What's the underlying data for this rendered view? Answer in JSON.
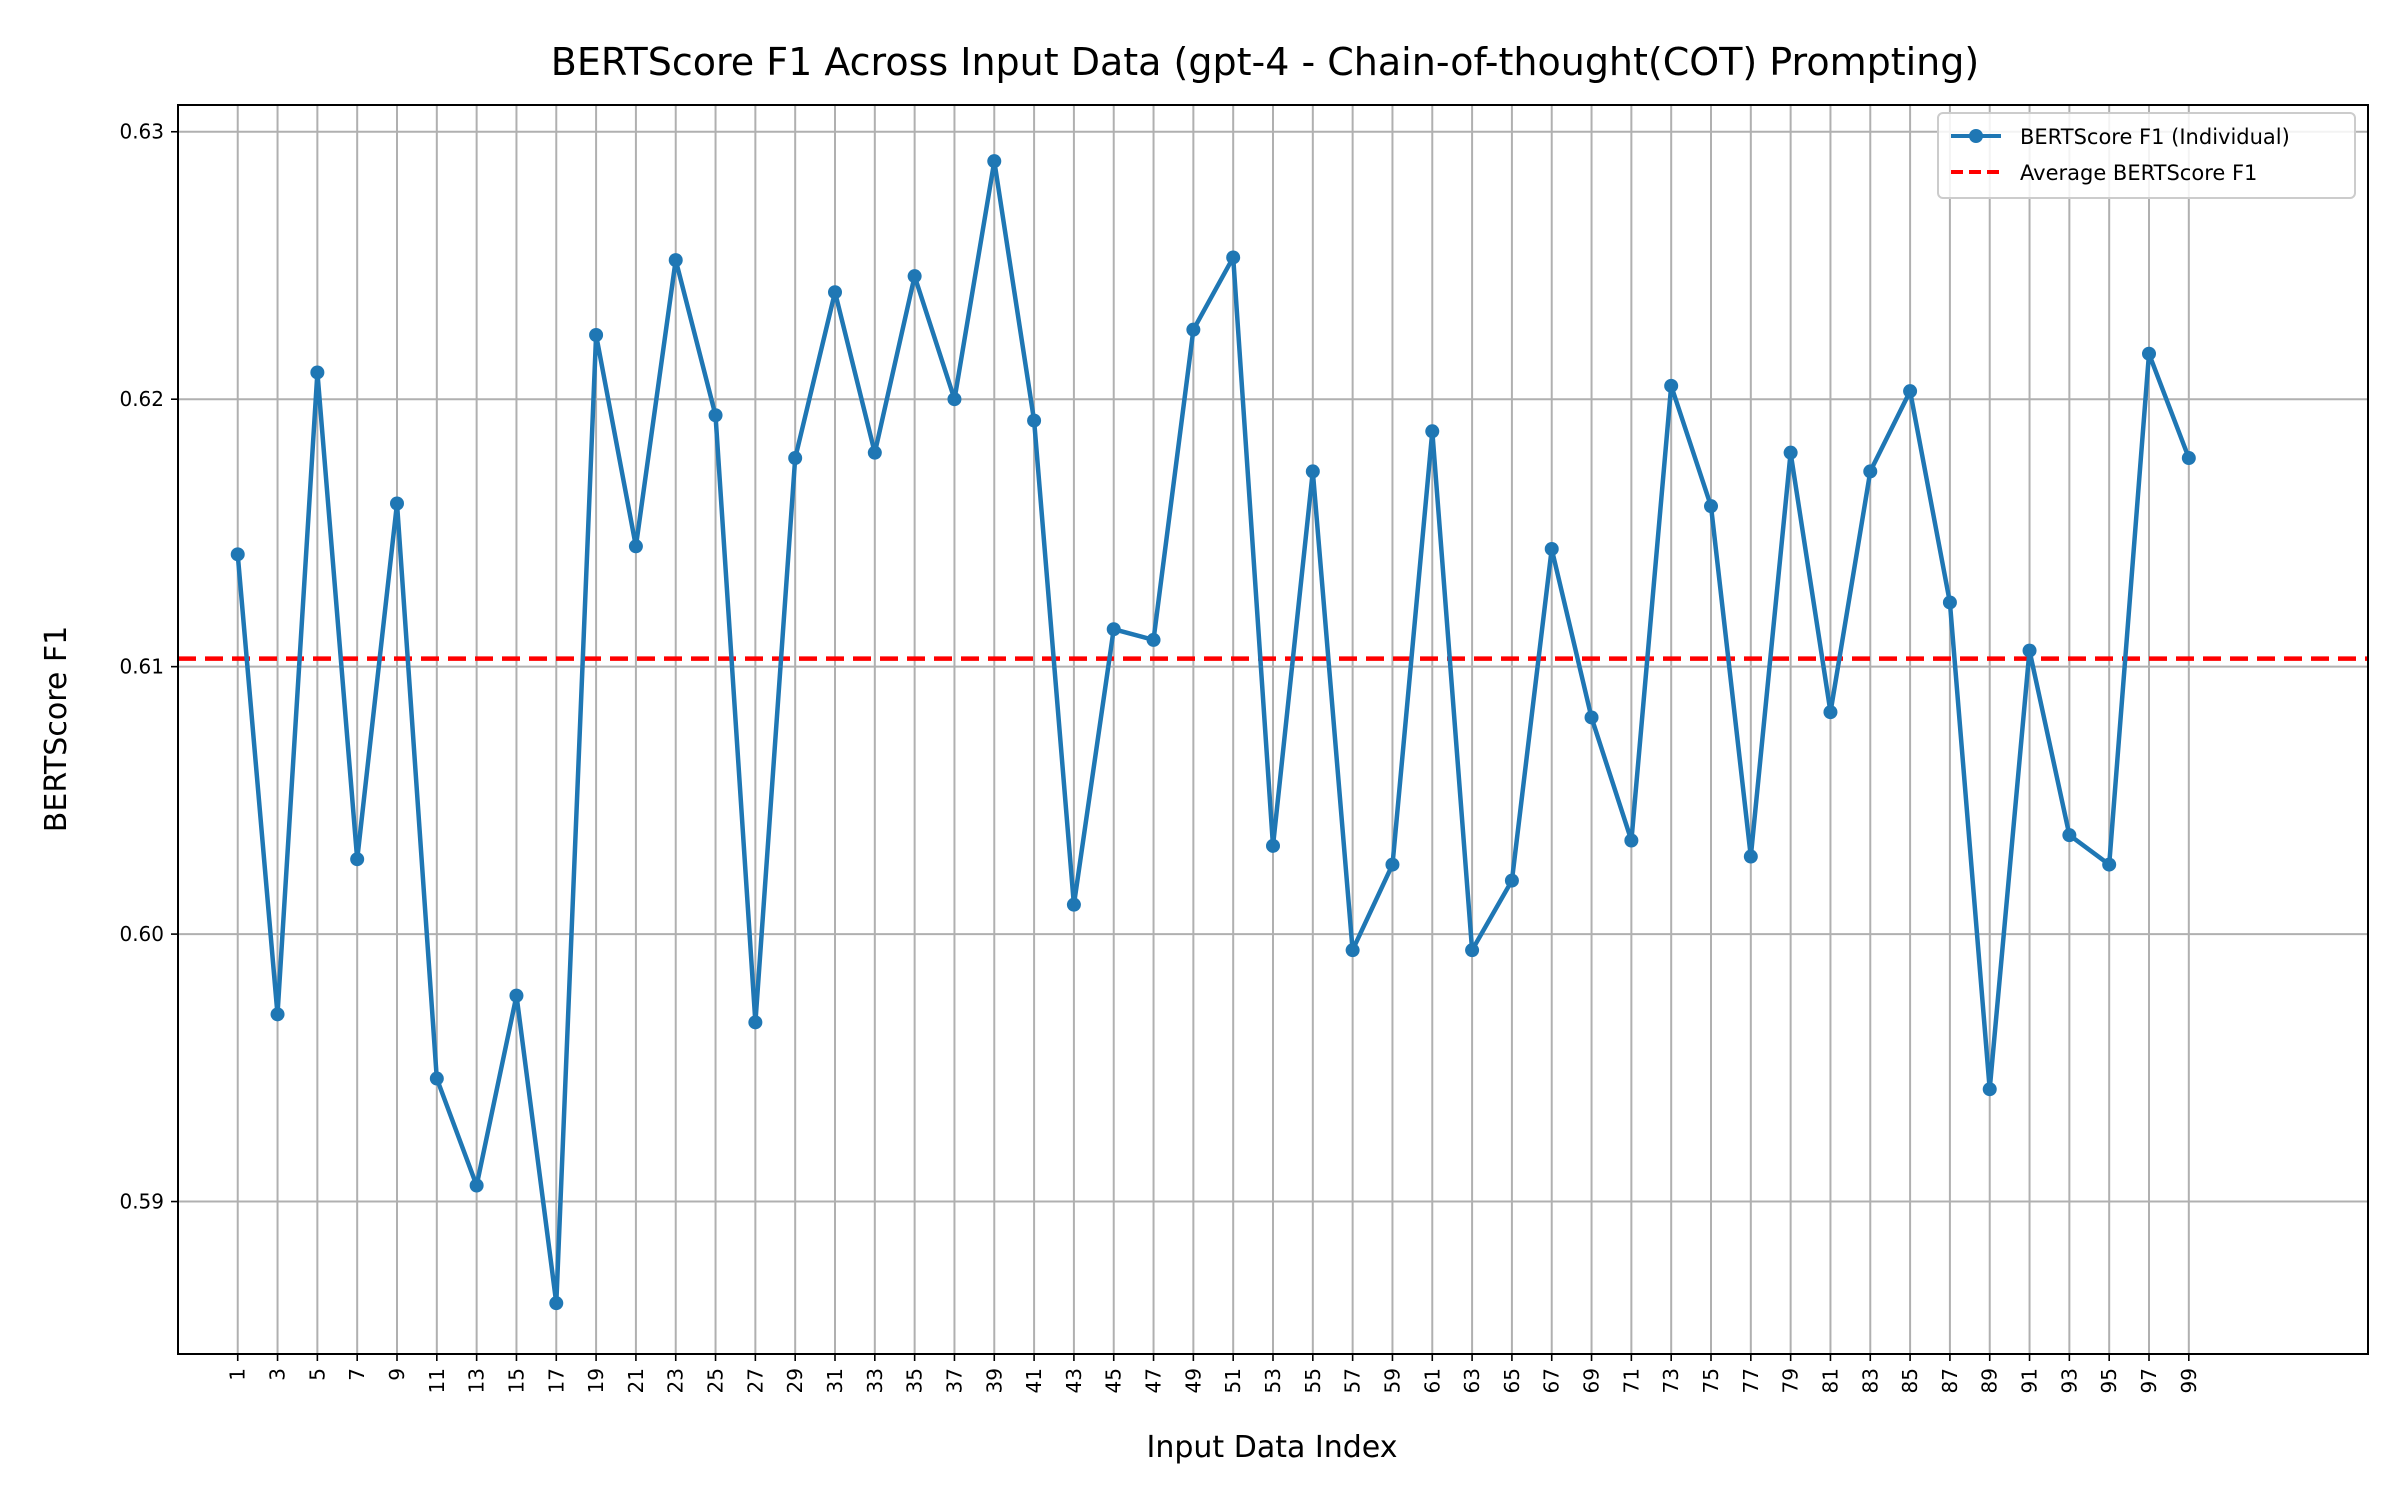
{
  "chart_data": {
    "type": "line",
    "title": "BERTScore F1 Across Input Data (gpt-4 - Chain-of-thought(COT) Prompting)",
    "xlabel": "Input Data Index",
    "ylabel": "BERTScore F1",
    "xlim": [
      -2,
      108
    ],
    "ylim": [
      0.5843,
      0.631
    ],
    "grid": true,
    "legend_position": "top-right",
    "x_ticks": [
      1,
      3,
      5,
      7,
      9,
      11,
      13,
      15,
      17,
      19,
      21,
      23,
      25,
      27,
      29,
      31,
      33,
      35,
      37,
      39,
      41,
      43,
      45,
      47,
      49,
      51,
      53,
      55,
      57,
      59,
      61,
      63,
      65,
      67,
      69,
      71,
      73,
      75,
      77,
      79,
      81,
      83,
      85,
      87,
      89,
      91,
      93,
      95,
      97,
      99
    ],
    "x_tick_labels": [
      "1",
      "3",
      "5",
      "7",
      "9",
      "11",
      "13",
      "15",
      "17",
      "19",
      "21",
      "23",
      "25",
      "27",
      "29",
      "31",
      "33",
      "35",
      "37",
      "39",
      "41",
      "43",
      "45",
      "47",
      "49",
      "51",
      "53",
      "55",
      "57",
      "59",
      "61",
      "63",
      "65",
      "67",
      "69",
      "71",
      "73",
      "75",
      "77",
      "79",
      "81",
      "83",
      "85",
      "87",
      "89",
      "91",
      "93",
      "95",
      "97",
      "99"
    ],
    "y_ticks": [
      0.59,
      0.6,
      0.61,
      0.62,
      0.63
    ],
    "y_tick_labels": [
      "0.59",
      "0.60",
      "0.61",
      "0.62",
      "0.63"
    ],
    "series": [
      {
        "name": "BERTScore F1 (Individual)",
        "color": "#1f77b4",
        "style": "line-with-markers",
        "x": [
          1,
          3,
          5,
          7,
          9,
          11,
          13,
          15,
          17,
          19,
          21,
          23,
          25,
          27,
          29,
          31,
          33,
          35,
          37,
          39,
          41,
          43,
          45,
          47,
          49,
          51,
          53,
          55,
          57,
          59,
          61,
          63,
          65,
          67,
          69,
          71,
          73,
          75,
          77,
          79,
          81,
          83,
          85,
          87,
          89,
          91,
          93,
          95,
          97,
          99
        ],
        "values": [
          0.6142,
          0.597,
          0.621,
          0.6028,
          0.6161,
          0.5946,
          0.5906,
          0.5977,
          0.5862,
          0.6224,
          0.6145,
          0.6252,
          0.6194,
          0.5967,
          0.6178,
          0.624,
          0.618,
          0.6246,
          0.62,
          0.6289,
          0.6192,
          0.6011,
          0.6114,
          0.611,
          0.6226,
          0.6253,
          0.6033,
          0.6173,
          0.5994,
          0.6026,
          0.6188,
          0.5994,
          0.602,
          0.6144,
          0.6081,
          0.6035,
          0.6205,
          0.616,
          0.6029,
          0.618,
          0.6083,
          0.6173,
          0.6203,
          0.6124,
          0.5942,
          0.6106,
          0.6037,
          0.6026,
          0.6217,
          0.6178
        ]
      },
      {
        "name": "Average BERTScore F1",
        "color": "#ff0000",
        "style": "dashed-horizontal",
        "value": 0.6103
      }
    ]
  }
}
